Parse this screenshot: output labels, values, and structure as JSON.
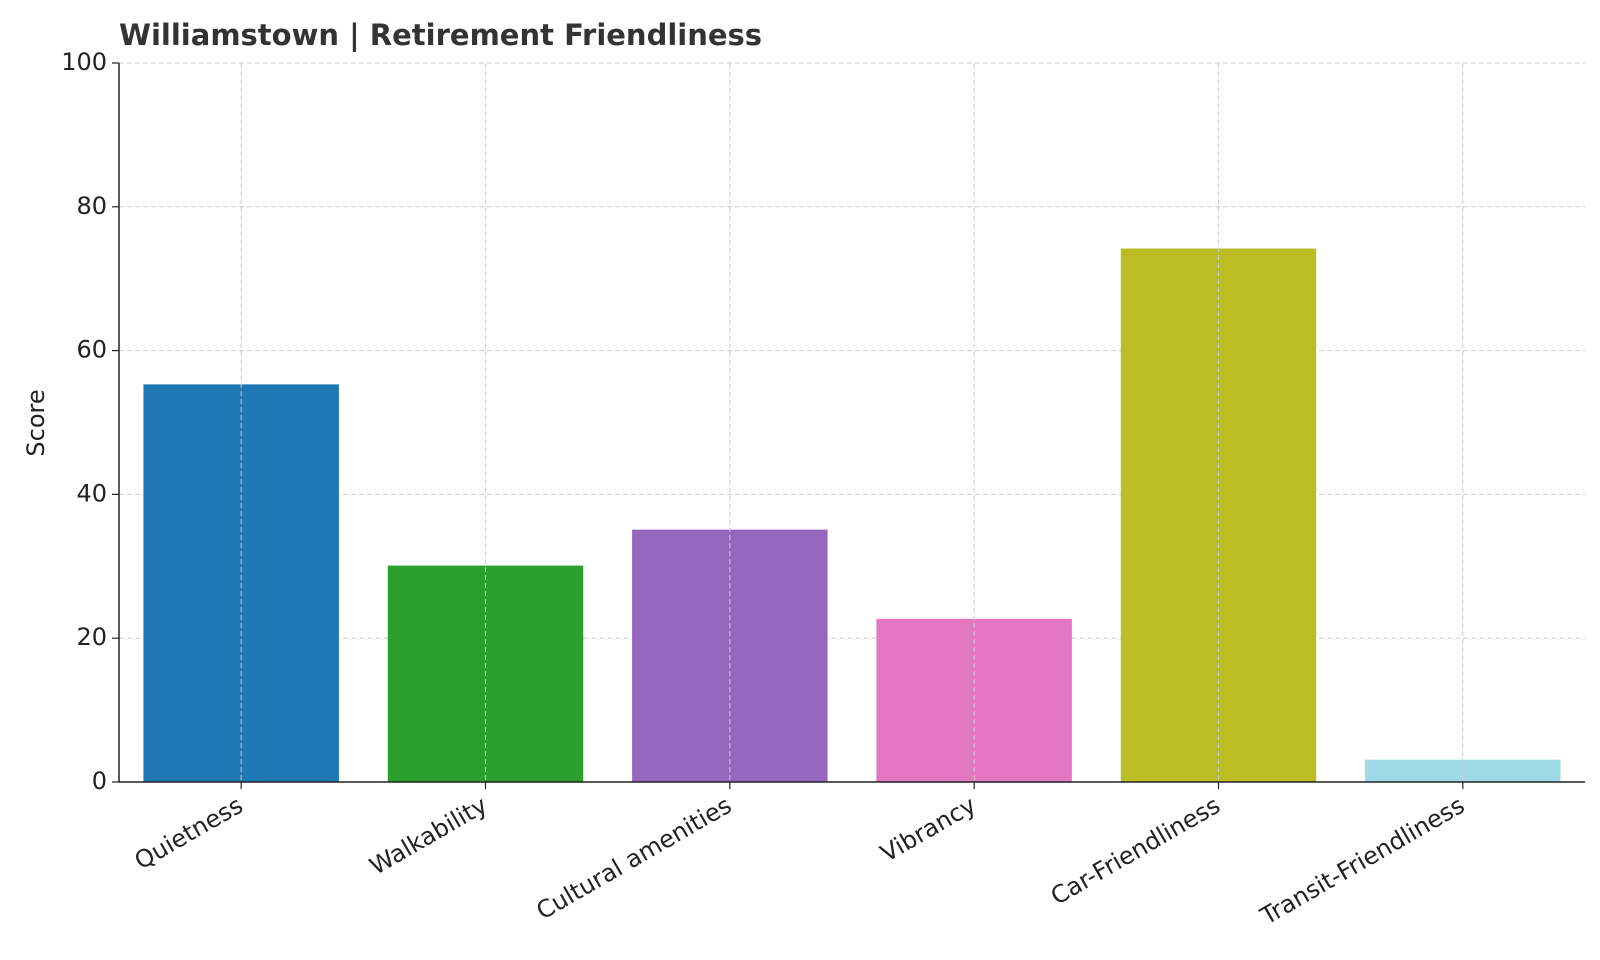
{
  "chart_data": {
    "type": "bar",
    "title": "Williamstown | Retirement Friendliness",
    "y_label": "Score",
    "categories": [
      "Quietness",
      "Walkability",
      "Cultural amenities",
      "Vibrancy",
      "Car-Friendliness",
      "Transit-Friendliness"
    ],
    "values": [
      55.3,
      30.1,
      35.1,
      22.7,
      74.2,
      3.1
    ],
    "colors": [
      "#1f77b4",
      "#2ca02c",
      "#9467bd",
      "#e377c2",
      "#bcbd22",
      "#9edae5"
    ],
    "ylim": [
      0,
      100
    ],
    "yticks": [
      0,
      20,
      40,
      60,
      80,
      100
    ],
    "grid": true
  }
}
